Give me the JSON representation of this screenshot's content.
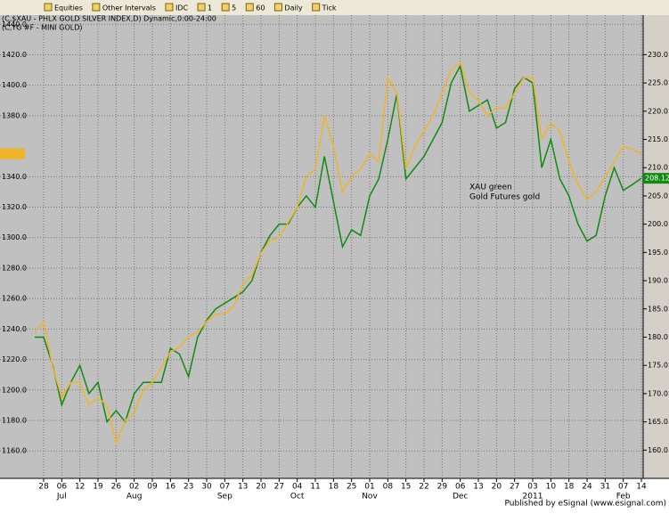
{
  "toolbar": {
    "items": [
      "Equities",
      "Other Intervals",
      "IDC",
      "1",
      "5",
      "60",
      "Daily",
      "Tick"
    ]
  },
  "footer": "Published by eSignal (www.esignal.com)",
  "chart_data": {
    "type": "line",
    "annotations": [
      "XAU green",
      "Gold Futures gold"
    ],
    "categories": [
      null,
      "28",
      null,
      "06",
      null,
      "12",
      null,
      "19",
      null,
      "26",
      null,
      "02",
      null,
      "09",
      null,
      "16",
      null,
      "23",
      null,
      "30",
      null,
      "07",
      null,
      "13",
      null,
      "20",
      null,
      "27",
      null,
      "04",
      null,
      "11",
      null,
      "18",
      null,
      "25",
      null,
      "01",
      null,
      "08",
      null,
      "15",
      null,
      "22",
      null,
      "29",
      null,
      "06",
      null,
      "13",
      null,
      "20",
      null,
      "27",
      null,
      "03",
      null,
      "10",
      null,
      "18",
      null,
      "24",
      null,
      "31",
      null,
      "07",
      null,
      "14"
    ],
    "category_groups": [
      null,
      null,
      null,
      "Jul",
      null,
      null,
      null,
      null,
      null,
      null,
      null,
      "Aug",
      null,
      null,
      null,
      null,
      null,
      null,
      null,
      null,
      null,
      "Sep",
      null,
      null,
      null,
      null,
      null,
      null,
      null,
      "Oct",
      null,
      null,
      null,
      null,
      null,
      null,
      null,
      "Nov",
      null,
      null,
      null,
      null,
      null,
      null,
      null,
      null,
      null,
      "Dec",
      null,
      null,
      null,
      null,
      null,
      null,
      null,
      "2011",
      null,
      null,
      null,
      null,
      null,
      null,
      null,
      null,
      null,
      "Feb",
      null,
      null
    ],
    "series": [
      {
        "name": "(C,$XAU - PHLX GOLD SILVER INDEX,D) Dynamic,0:00-24:00",
        "color": "#118a11",
        "axis": "y2",
        "values": [
          180,
          180,
          175,
          168,
          172,
          175,
          170,
          172,
          165,
          167,
          165,
          170,
          172,
          172,
          172,
          178,
          177,
          173,
          180,
          183,
          185,
          186,
          187,
          188,
          190,
          195,
          198,
          200,
          200,
          203,
          205,
          203,
          212,
          204,
          196,
          199,
          198,
          205,
          208,
          215,
          223,
          208,
          210,
          212,
          215,
          218,
          225,
          228,
          220,
          221,
          222,
          217,
          218,
          224,
          226,
          225,
          210,
          215,
          208,
          205,
          200,
          197,
          198,
          205,
          210,
          206,
          207,
          208.12
        ]
      },
      {
        "name": "(C,YG #F - MINI GOLD)",
        "color": "#f0b428",
        "values": [
          1238,
          1245,
          1215,
          1195,
          1205,
          1205,
          1190,
          1195,
          1190,
          1165,
          1180,
          1185,
          1200,
          1205,
          1215,
          1225,
          1228,
          1235,
          1238,
          1245,
          1250,
          1250,
          1255,
          1270,
          1275,
          1290,
          1298,
          1300,
          1310,
          1320,
          1340,
          1345,
          1380,
          1360,
          1330,
          1340,
          1345,
          1355,
          1350,
          1405,
          1395,
          1345,
          1360,
          1370,
          1380,
          1395,
          1410,
          1415,
          1395,
          1390,
          1380,
          1385,
          1385,
          1395,
          1405,
          1405,
          1365,
          1375,
          1370,
          1350,
          1335,
          1325,
          1330,
          1340,
          1350,
          1360,
          1358,
          1355
        ]
      }
    ],
    "ylim": [
      1142,
      1446
    ],
    "yticks": [
      {
        "value": 1160,
        "label": "1160.0"
      },
      {
        "value": 1180,
        "label": "1180.0"
      },
      {
        "value": 1200,
        "label": "1200.0"
      },
      {
        "value": 1220,
        "label": "1220.0"
      },
      {
        "value": 1240,
        "label": "1240.0"
      },
      {
        "value": 1260,
        "label": "1260.0"
      },
      {
        "value": 1280,
        "label": "1280.0"
      },
      {
        "value": 1300,
        "label": "1300.0"
      },
      {
        "value": 1320,
        "label": "1320.0"
      },
      {
        "value": 1340,
        "label": "1340.0"
      },
      {
        "value": 1380,
        "label": "1380.0"
      },
      {
        "value": 1400,
        "label": "1400.0"
      },
      {
        "value": 1420,
        "label": "1420.0"
      },
      {
        "value": 1440,
        "label": "1440.0"
      }
    ],
    "y2lim": [
      155,
      237
    ],
    "y2ticks": [
      {
        "value": 160,
        "label": "160.0"
      },
      {
        "value": 165,
        "label": "165.0"
      },
      {
        "value": 170,
        "label": "170.0"
      },
      {
        "value": 175,
        "label": "175.0"
      },
      {
        "value": 180,
        "label": "180.0"
      },
      {
        "value": 185,
        "label": "185.0"
      },
      {
        "value": 190,
        "label": "190.0"
      },
      {
        "value": 195,
        "label": "195.0"
      },
      {
        "value": 200,
        "label": "200.0"
      },
      {
        "value": 205,
        "label": "205.0"
      },
      {
        "value": 210,
        "label": "210.0"
      },
      {
        "value": 215,
        "label": "215.0"
      },
      {
        "value": 220,
        "label": "220.0"
      },
      {
        "value": 225,
        "label": "225.0"
      },
      {
        "value": 230,
        "label": "230.0"
      }
    ],
    "grid": true
  }
}
